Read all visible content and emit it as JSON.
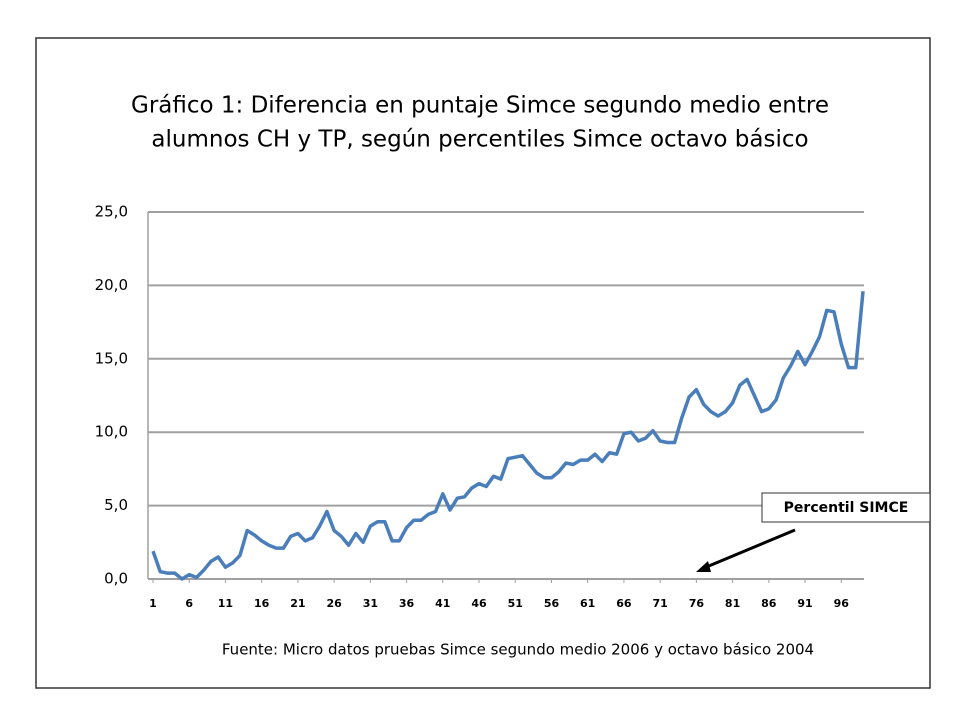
{
  "chart_data": {
    "type": "line",
    "title": [
      "Gráfico 1:  Diferencia en puntaje Simce segundo medio entre",
      "alumnos CH y TP, según percentiles Simce octavo básico"
    ],
    "source": "Fuente: Micro datos pruebas Simce segundo medio 2006 y octavo básico 2004",
    "annotation": "Percentil SIMCE",
    "x": [
      1,
      2,
      3,
      4,
      5,
      6,
      7,
      8,
      9,
      10,
      11,
      12,
      13,
      14,
      15,
      16,
      17,
      18,
      19,
      20,
      21,
      22,
      23,
      24,
      25,
      26,
      27,
      28,
      29,
      30,
      31,
      32,
      33,
      34,
      35,
      36,
      37,
      38,
      39,
      40,
      41,
      42,
      43,
      44,
      45,
      46,
      47,
      48,
      49,
      50,
      51,
      52,
      53,
      54,
      55,
      56,
      57,
      58,
      59,
      60,
      61,
      62,
      63,
      64,
      65,
      66,
      67,
      68,
      69,
      70,
      71,
      72,
      73,
      74,
      75,
      76,
      77,
      78,
      79,
      80,
      81,
      82,
      83,
      84,
      85,
      86,
      87,
      88,
      89,
      90,
      91,
      92,
      93,
      94,
      95,
      96,
      97,
      98,
      99
    ],
    "series": [
      {
        "color": "#4a7ebb",
        "values": [
          1.9,
          0.5,
          0.4,
          0.4,
          0.0,
          0.3,
          0.1,
          0.6,
          1.2,
          1.5,
          0.8,
          1.1,
          1.6,
          3.3,
          3.0,
          2.6,
          2.3,
          2.1,
          2.1,
          2.9,
          3.1,
          2.6,
          2.8,
          3.6,
          4.6,
          3.3,
          2.9,
          2.3,
          3.1,
          2.5,
          3.6,
          3.9,
          3.9,
          2.6,
          2.6,
          3.5,
          4.0,
          4.0,
          4.4,
          4.6,
          5.8,
          4.7,
          5.5,
          5.6,
          6.2,
          6.5,
          6.3,
          7.0,
          6.8,
          8.2,
          8.3,
          8.4,
          7.8,
          7.2,
          6.9,
          6.9,
          7.3,
          7.9,
          7.8,
          8.1,
          8.1,
          8.5,
          8.0,
          8.6,
          8.5,
          9.9,
          10.0,
          9.4,
          9.6,
          10.1,
          9.4,
          9.3,
          9.3,
          11.0,
          12.4,
          12.9,
          11.9,
          11.4,
          11.1,
          11.4,
          12.0,
          13.2,
          13.6,
          12.5,
          11.4,
          11.6,
          12.2,
          13.7,
          14.5,
          15.5,
          14.6,
          15.5,
          16.5,
          18.3,
          18.2,
          16.0,
          14.4,
          14.4,
          19.6
        ]
      }
    ],
    "xlim": [
      1,
      99
    ],
    "xticks": [
      1,
      6,
      11,
      16,
      21,
      26,
      31,
      36,
      41,
      46,
      51,
      56,
      61,
      66,
      71,
      76,
      81,
      86,
      91,
      96
    ],
    "ylim": [
      0,
      25
    ],
    "yticks": [
      {
        "value": 0,
        "label": "0,0"
      },
      {
        "value": 5,
        "label": "5,0"
      },
      {
        "value": 10,
        "label": "10,0"
      },
      {
        "value": 15,
        "label": "15,0"
      },
      {
        "value": 20,
        "label": "20,0"
      },
      {
        "value": 25,
        "label": "25,0"
      }
    ],
    "grid": true
  }
}
